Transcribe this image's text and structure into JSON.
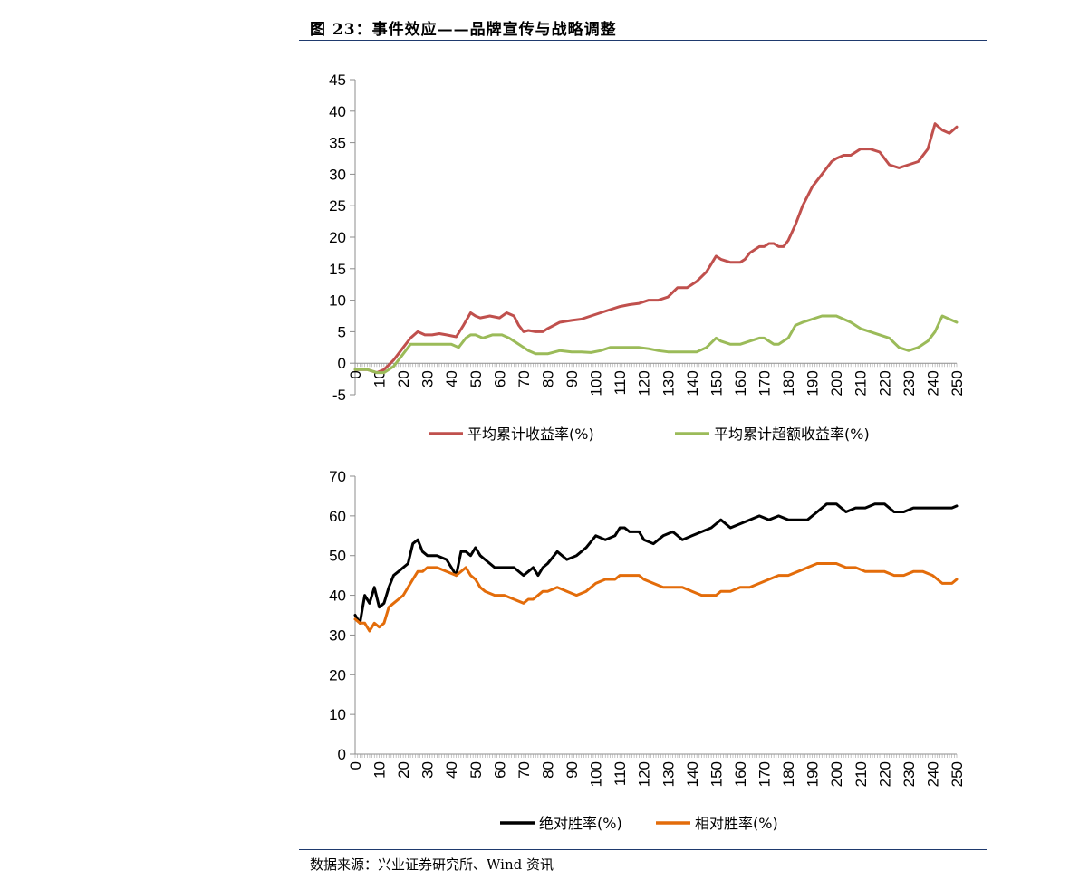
{
  "figure": {
    "title": "图 23：事件效应——品牌宣传与战略调整",
    "source": "数据来源：兴业证券研究所、Wind 资讯"
  },
  "chart_data": [
    {
      "type": "line",
      "x_range": [
        0,
        250
      ],
      "x_ticks": [
        0,
        10,
        20,
        30,
        40,
        50,
        60,
        70,
        80,
        90,
        100,
        110,
        120,
        130,
        140,
        150,
        160,
        170,
        180,
        190,
        200,
        210,
        220,
        230,
        240,
        250
      ],
      "ylim": [
        -5,
        45
      ],
      "y_ticks": [
        -5,
        0,
        5,
        10,
        15,
        20,
        25,
        30,
        35,
        40,
        45
      ],
      "grid": false,
      "legend_position": "bottom",
      "series": [
        {
          "name": "平均累计收益率(%)",
          "color": "#c0504d",
          "x": [
            0,
            5,
            9,
            12,
            16,
            20,
            23,
            26,
            29,
            32,
            35,
            38,
            42,
            45,
            48,
            50,
            52,
            56,
            60,
            63,
            66,
            68,
            70,
            72,
            75,
            78,
            80,
            85,
            90,
            94,
            98,
            102,
            106,
            110,
            114,
            118,
            122,
            126,
            130,
            134,
            138,
            142,
            146,
            150,
            152,
            156,
            160,
            162,
            164,
            168,
            170,
            172,
            174,
            176,
            178,
            180,
            183,
            186,
            190,
            194,
            198,
            200,
            203,
            206,
            210,
            214,
            218,
            222,
            226,
            230,
            234,
            238,
            241,
            244,
            247,
            250
          ],
          "values": [
            -1,
            -1,
            -1.5,
            -1,
            0.5,
            2.5,
            4,
            5,
            4.5,
            4.5,
            4.7,
            4.5,
            4.2,
            6,
            8,
            7.5,
            7.2,
            7.5,
            7.2,
            8,
            7.5,
            6,
            5,
            5.2,
            5,
            5,
            5.5,
            6.5,
            6.8,
            7,
            7.5,
            8,
            8.5,
            9,
            9.3,
            9.5,
            10,
            10,
            10.5,
            12,
            12,
            13,
            14.5,
            17,
            16.5,
            16,
            16,
            16.5,
            17.5,
            18.5,
            18.5,
            19,
            19,
            18.5,
            18.5,
            19.5,
            22,
            25,
            28,
            30,
            32,
            32.5,
            33,
            33,
            34,
            34,
            33.5,
            31.5,
            31,
            31.5,
            32,
            34,
            38,
            37,
            36.5,
            37.5
          ]
        },
        {
          "name": "平均累计超额收益率(%)",
          "color": "#9bbb59",
          "x": [
            0,
            5,
            9,
            12,
            16,
            20,
            23,
            26,
            30,
            33,
            37,
            40,
            43,
            46,
            48,
            50,
            53,
            57,
            61,
            64,
            66,
            68,
            70,
            72,
            75,
            78,
            80,
            85,
            90,
            94,
            98,
            102,
            106,
            110,
            114,
            118,
            122,
            126,
            130,
            134,
            138,
            142,
            146,
            150,
            152,
            156,
            160,
            164,
            168,
            170,
            172,
            174,
            176,
            178,
            180,
            183,
            186,
            190,
            194,
            198,
            200,
            203,
            206,
            210,
            214,
            218,
            222,
            226,
            230,
            234,
            238,
            241,
            244,
            247,
            250
          ],
          "values": [
            -1,
            -1,
            -1.5,
            -1.5,
            -0.5,
            1.5,
            3,
            3,
            3,
            3,
            3,
            3,
            2.5,
            4,
            4.5,
            4.5,
            4,
            4.5,
            4.5,
            4,
            3.5,
            3,
            2.5,
            2,
            1.5,
            1.5,
            1.5,
            2,
            1.8,
            1.8,
            1.7,
            2,
            2.5,
            2.5,
            2.5,
            2.5,
            2.3,
            2,
            1.8,
            1.8,
            1.8,
            1.8,
            2.5,
            4,
            3.5,
            3,
            3,
            3.5,
            4,
            4,
            3.5,
            3,
            3,
            3.5,
            4,
            6,
            6.5,
            7,
            7.5,
            7.5,
            7.5,
            7,
            6.5,
            5.5,
            5,
            4.5,
            4,
            2.5,
            2,
            2.5,
            3.5,
            5,
            7.5,
            7,
            6.5
          ]
        }
      ]
    },
    {
      "type": "line",
      "x_range": [
        0,
        250
      ],
      "x_ticks": [
        0,
        10,
        20,
        30,
        40,
        50,
        60,
        70,
        80,
        90,
        100,
        110,
        120,
        130,
        140,
        150,
        160,
        170,
        180,
        190,
        200,
        210,
        220,
        230,
        240,
        250
      ],
      "ylim": [
        0,
        70
      ],
      "y_ticks": [
        0,
        10,
        20,
        30,
        40,
        50,
        60,
        70
      ],
      "grid": false,
      "legend_position": "bottom",
      "series": [
        {
          "name": "绝对胜率(%)",
          "color": "#000000",
          "x": [
            0,
            2,
            4,
            6,
            8,
            10,
            12,
            14,
            16,
            18,
            20,
            22,
            24,
            26,
            28,
            30,
            34,
            38,
            42,
            44,
            46,
            48,
            50,
            52,
            54,
            58,
            62,
            66,
            70,
            72,
            74,
            76,
            78,
            80,
            84,
            88,
            92,
            96,
            100,
            104,
            108,
            110,
            112,
            114,
            118,
            120,
            124,
            128,
            132,
            136,
            140,
            144,
            148,
            150,
            152,
            156,
            160,
            164,
            168,
            172,
            176,
            180,
            184,
            188,
            192,
            196,
            200,
            204,
            208,
            212,
            216,
            220,
            224,
            228,
            232,
            236,
            240,
            244,
            248,
            250
          ],
          "values": [
            35,
            33,
            40,
            38,
            42,
            37,
            38,
            42,
            45,
            46,
            47,
            48,
            53,
            54,
            51,
            50,
            50,
            49,
            45,
            51,
            51,
            50,
            52,
            50,
            49,
            47,
            47,
            47,
            45,
            46,
            47,
            45,
            47,
            48,
            51,
            49,
            50,
            52,
            55,
            54,
            55,
            57,
            57,
            56,
            56,
            54,
            53,
            55,
            56,
            54,
            55,
            56,
            57,
            58,
            59,
            57,
            58,
            59,
            60,
            59,
            60,
            59,
            59,
            59,
            61,
            63,
            63,
            61,
            62,
            62,
            63,
            63,
            61,
            61,
            62,
            62,
            62,
            62,
            62,
            62.5
          ]
        },
        {
          "name": "相对胜率(%)",
          "color": "#e36c0a",
          "x": [
            0,
            2,
            4,
            6,
            8,
            10,
            12,
            14,
            16,
            18,
            20,
            22,
            24,
            26,
            28,
            30,
            34,
            38,
            42,
            44,
            46,
            48,
            50,
            52,
            54,
            58,
            62,
            66,
            70,
            72,
            74,
            76,
            78,
            80,
            84,
            88,
            92,
            96,
            100,
            104,
            108,
            110,
            112,
            114,
            118,
            120,
            124,
            128,
            132,
            136,
            140,
            144,
            148,
            150,
            152,
            156,
            160,
            164,
            168,
            172,
            176,
            180,
            184,
            188,
            192,
            196,
            200,
            204,
            208,
            212,
            216,
            220,
            224,
            228,
            232,
            236,
            240,
            244,
            248,
            250
          ],
          "values": [
            34,
            33,
            33,
            31,
            33,
            32,
            33,
            37,
            38,
            39,
            40,
            42,
            44,
            46,
            46,
            47,
            47,
            46,
            45,
            46,
            47,
            45,
            44,
            42,
            41,
            40,
            40,
            39,
            38,
            39,
            39,
            40,
            41,
            41,
            42,
            41,
            40,
            41,
            43,
            44,
            44,
            45,
            45,
            45,
            45,
            44,
            43,
            42,
            42,
            42,
            41,
            40,
            40,
            40,
            41,
            41,
            42,
            42,
            43,
            44,
            45,
            45,
            46,
            47,
            48,
            48,
            48,
            47,
            47,
            46,
            46,
            46,
            45,
            45,
            46,
            46,
            45,
            43,
            43,
            44
          ]
        }
      ]
    }
  ]
}
